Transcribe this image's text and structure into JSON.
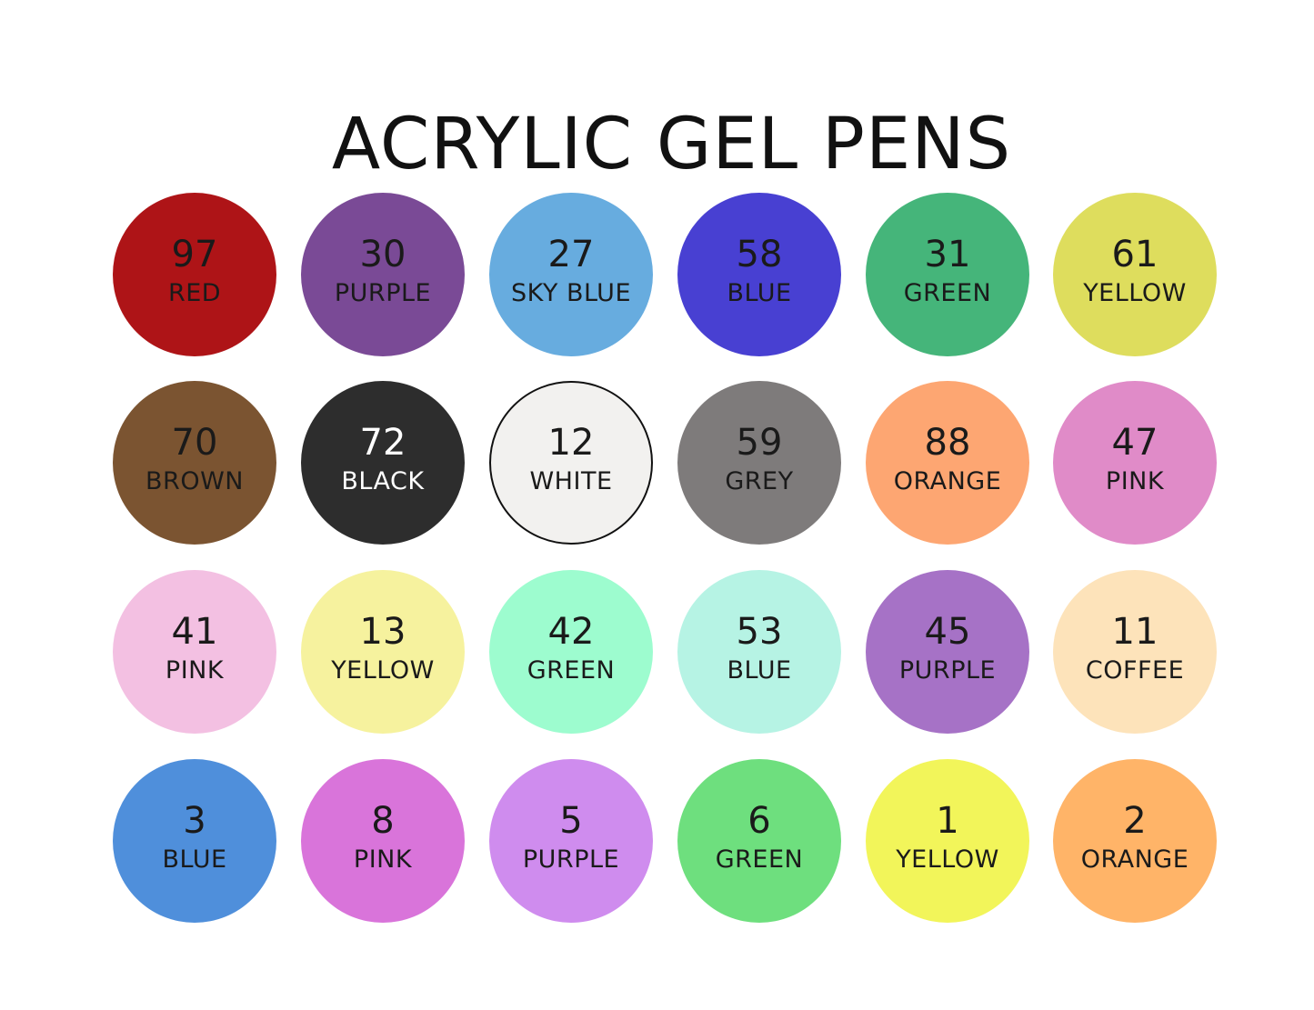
{
  "title": "ACRYLIC GEL PENS",
  "swatches": [
    {
      "number": "97",
      "name": "RED",
      "color": "#AE1417"
    },
    {
      "number": "30",
      "name": "PURPLE",
      "color": "#7A4A96"
    },
    {
      "number": "27",
      "name": "SKY BLUE",
      "color": "#67ACDF"
    },
    {
      "number": "58",
      "name": "BLUE",
      "color": "#4840D2"
    },
    {
      "number": "31",
      "name": "GREEN",
      "color": "#45B57A"
    },
    {
      "number": "61",
      "name": "YELLOW",
      "color": "#DEDD5D"
    },
    {
      "number": "70",
      "name": "BROWN",
      "color": "#7B5431"
    },
    {
      "number": "72",
      "name": "BLACK",
      "color": "#2D2D2D",
      "text_color": "#FFFFFF"
    },
    {
      "number": "12",
      "name": "WHITE",
      "color": "#F2F1EF",
      "border": "#111111"
    },
    {
      "number": "59",
      "name": "GREY",
      "color": "#7E7B7B"
    },
    {
      "number": "88",
      "name": "ORANGE",
      "color": "#FDA672"
    },
    {
      "number": "47",
      "name": "PINK",
      "color": "#E08BC8"
    },
    {
      "number": "41",
      "name": "PINK",
      "color": "#F3C0E2"
    },
    {
      "number": "13",
      "name": "YELLOW",
      "color": "#F6F29E"
    },
    {
      "number": "42",
      "name": "GREEN",
      "color": "#9DFCCF"
    },
    {
      "number": "53",
      "name": "BLUE",
      "color": "#B6F3E4"
    },
    {
      "number": "45",
      "name": "PURPLE",
      "color": "#A672C6"
    },
    {
      "number": "11",
      "name": "COFFEE",
      "color": "#FDE3BA"
    },
    {
      "number": "3",
      "name": "BLUE",
      "color": "#4F8FDB"
    },
    {
      "number": "8",
      "name": "PINK",
      "color": "#D974DA"
    },
    {
      "number": "5",
      "name": "PURPLE",
      "color": "#CF8CEE"
    },
    {
      "number": "6",
      "name": "GREEN",
      "color": "#6EDF7E"
    },
    {
      "number": "1",
      "name": "YELLOW",
      "color": "#F2F55A"
    },
    {
      "number": "2",
      "name": "ORANGE",
      "color": "#FFB468"
    }
  ]
}
